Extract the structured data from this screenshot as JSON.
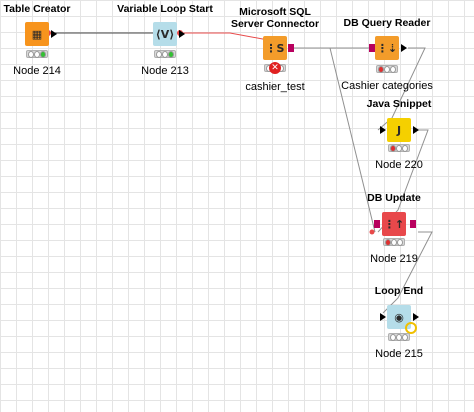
{
  "nodes": [
    {
      "id": "table-creator",
      "title": "Table Creator",
      "label": "Node 214",
      "icon": "table-icon",
      "status": "green"
    },
    {
      "id": "variable-loop-start",
      "title": "Variable Loop Start",
      "label": "Node 213",
      "icon": "loop-start-icon",
      "status": "green"
    },
    {
      "id": "ms-sql-connector",
      "title_line1": "Microsoft SQL",
      "title_line2": "Server Connector",
      "label": "cashier_test",
      "icon": "database-connector-icon",
      "status": "error"
    },
    {
      "id": "db-query-reader",
      "title": "DB Query Reader",
      "label": "Cashier categories",
      "icon": "db-reader-icon",
      "status": "red"
    },
    {
      "id": "java-snippet",
      "title": "Java Snippet",
      "label": "Node 220",
      "icon": "java-icon",
      "status": "red"
    },
    {
      "id": "db-update",
      "title": "DB Update",
      "label": "Node 219",
      "icon": "db-update-icon",
      "status": "red"
    },
    {
      "id": "loop-end",
      "title": "Loop End",
      "label": "Node 215",
      "icon": "loop-end-icon",
      "status": "none"
    }
  ],
  "colors": {
    "variable_connection": "#e84a4a",
    "data_connection": "#909090",
    "db_port": "#b8005e"
  }
}
